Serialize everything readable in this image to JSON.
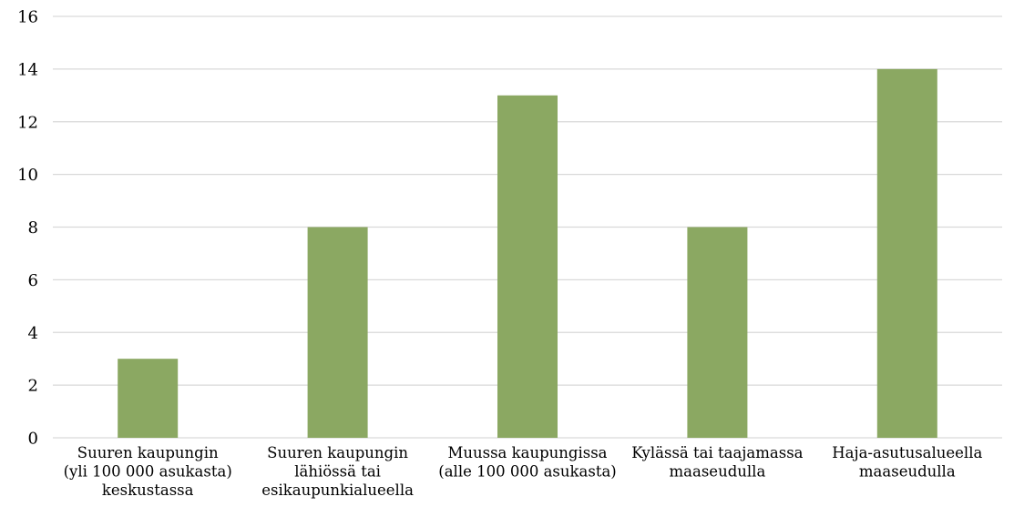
{
  "chart_data": {
    "type": "bar",
    "categories": [
      [
        "Suuren kaupungin",
        "(yli 100 000 asukasta)",
        "keskustassa"
      ],
      [
        "Suuren kaupungin",
        "lähiössä tai",
        "esikaupunkialueella"
      ],
      [
        "Muussa kaupungissa",
        "(alle 100 000 asukasta)"
      ],
      [
        "Kylässä tai taajamassa",
        "maaseudulla"
      ],
      [
        "Haja-asutusalueella",
        "maaseudulla"
      ]
    ],
    "values": [
      3,
      8,
      13,
      8,
      14
    ],
    "ylim": [
      0,
      16
    ],
    "yticks": [
      0,
      2,
      4,
      6,
      8,
      10,
      12,
      14,
      16
    ],
    "grid": true,
    "bar_color": "#8BA862",
    "grid_color": "#D9D9D9",
    "title": "",
    "xlabel": "",
    "ylabel": ""
  }
}
